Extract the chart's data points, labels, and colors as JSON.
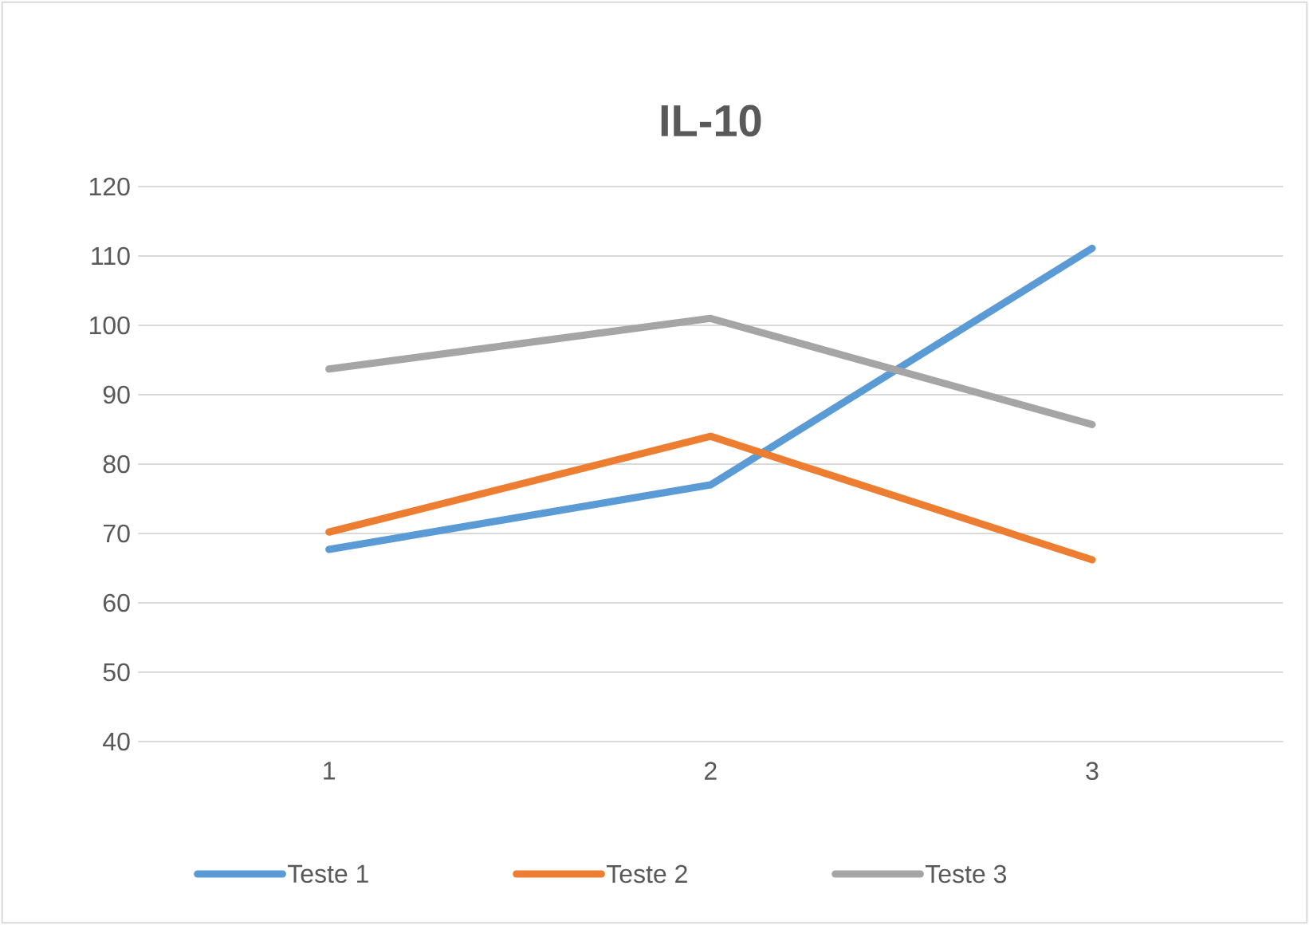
{
  "chart_data": {
    "type": "line",
    "title": "IL-10",
    "categories": [
      "1",
      "2",
      "3"
    ],
    "series": [
      {
        "name": "Teste 1",
        "color": "#5b9bd5",
        "values": [
          67.7,
          77.0,
          111.1
        ]
      },
      {
        "name": "Teste 2",
        "color": "#ed7d31",
        "values": [
          70.2,
          84.0,
          66.2
        ]
      },
      {
        "name": "Teste 3",
        "color": "#a5a5a5",
        "values": [
          93.7,
          101.0,
          85.7
        ]
      }
    ],
    "ylim": [
      40,
      120
    ],
    "yticks": [
      40,
      50,
      60,
      70,
      80,
      90,
      100,
      110,
      120
    ],
    "grid": "y",
    "legend": "bottom",
    "marker": "none",
    "line_style": "solid"
  }
}
